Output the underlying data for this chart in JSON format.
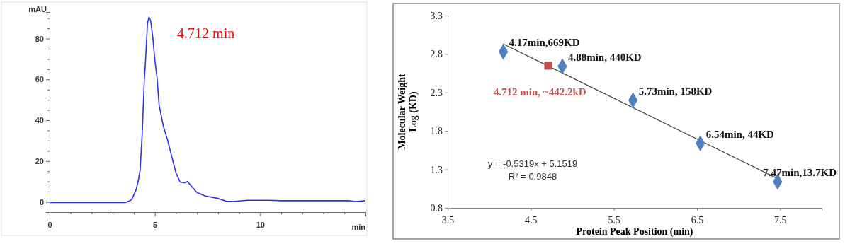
{
  "chart_data": [
    {
      "type": "line",
      "xlabel": "min",
      "ylabel": "mAU",
      "xlim": [
        0,
        15
      ],
      "ylim": [
        -5,
        93
      ],
      "xticks": [
        0,
        {
          "value": 1,
          "label": null
        },
        {
          "value": 2,
          "label": null
        },
        {
          "value": 3,
          "label": null
        },
        {
          "value": 4,
          "label": null
        },
        5,
        {
          "value": 6,
          "label": null
        },
        {
          "value": 7,
          "label": null
        },
        {
          "value": 8,
          "label": null
        },
        {
          "value": 9,
          "label": null
        },
        10,
        {
          "value": 11,
          "label": null
        },
        {
          "value": 12,
          "label": null
        },
        {
          "value": 13,
          "label": null
        },
        {
          "value": 14,
          "label": null
        },
        {
          "value": 15,
          "label": null
        }
      ],
      "yticks": [
        0,
        {
          "value": 5,
          "label": null
        },
        {
          "value": 10,
          "label": null
        },
        {
          "value": 15,
          "label": null
        },
        20,
        {
          "value": 25,
          "label": null
        },
        {
          "value": 30,
          "label": null
        },
        {
          "value": 35,
          "label": null
        },
        40,
        {
          "value": 45,
          "label": null
        },
        {
          "value": 50,
          "label": null
        },
        {
          "value": 55,
          "label": null
        },
        60,
        {
          "value": 65,
          "label": null
        },
        {
          "value": 70,
          "label": null
        },
        {
          "value": 75,
          "label": null
        },
        80,
        {
          "value": 85,
          "label": null
        },
        {
          "value": 90,
          "label": null
        }
      ],
      "grid": false,
      "marker": "none",
      "line_style": "solid",
      "annotations": [
        {
          "text": "4.712 min",
          "x": 4.712,
          "y": 90.5
        }
      ],
      "series": [
        {
          "color": "#2f2ff0",
          "x": [
            0,
            3.6,
            3.8,
            3.9,
            4.1,
            4.2,
            4.3,
            4.4,
            4.5,
            4.55,
            4.65,
            4.72,
            4.8,
            4.9,
            5.0,
            5.1,
            5.2,
            5.4,
            5.6,
            5.8,
            6.0,
            6.2,
            6.4,
            6.55,
            6.8,
            7.0,
            7.4,
            8.0,
            8.4,
            8.8,
            9.4,
            10.4,
            11,
            14.2,
            14.5,
            15
          ],
          "values": [
            -0.3,
            -0.3,
            0.5,
            1.1,
            5.7,
            9.7,
            15.5,
            33.8,
            60,
            68,
            87.6,
            90.5,
            88.8,
            80.8,
            69.3,
            61.3,
            47.5,
            37.2,
            30.4,
            22.3,
            14.3,
            9.7,
            9.4,
            10,
            6.9,
            4.6,
            2.9,
            1.7,
            0.3,
            0.3,
            0.8,
            0.8,
            0.6,
            0.6,
            0.2,
            0.6
          ]
        }
      ]
    },
    {
      "type": "scatter",
      "xlabel": "Protein Peak Position (min)",
      "ylabel": "Molecular Weight\nLog (KD)",
      "xlim": [
        3.5,
        8.0
      ],
      "ylim": [
        0.8,
        3.3
      ],
      "xticks": [
        3.5,
        4.5,
        5.5,
        6.5,
        7.5
      ],
      "yticks": [
        0.8,
        1.3,
        1.8,
        2.3,
        2.8,
        3.3
      ],
      "grid": false,
      "annotations": [
        {
          "text": "4.17min,669KD",
          "x": 4.17,
          "y": 2.83
        },
        {
          "text": "4.88min, 440KD",
          "x": 4.88,
          "y": 2.64
        },
        {
          "text": "5.73min, 158KD",
          "x": 5.73,
          "y": 2.2
        },
        {
          "text": "6.54min, 44KD",
          "x": 6.54,
          "y": 1.64
        },
        {
          "text": "7.47min,13.7KD",
          "x": 7.47,
          "y": 1.14
        },
        {
          "text": "4.712 min, ~442.2kD",
          "x": 4.712,
          "y": 2.65
        },
        "y = -0.5319x + 5.1519",
        "R² = 0.9848"
      ],
      "series": [
        {
          "type": "line",
          "color": "#404040",
          "marker": "none",
          "line_style": "solid",
          "x": [
            4.17,
            7.47
          ],
          "values": [
            2.93,
            1.18
          ]
        },
        {
          "color": "#4f81bd",
          "marker": "diamond",
          "x": [
            4.17,
            4.88,
            5.73,
            6.54,
            7.47
          ],
          "values": [
            2.83,
            2.64,
            2.2,
            1.64,
            1.14
          ]
        },
        {
          "color": "#c0504d",
          "marker": "square",
          "x": [
            4.712
          ],
          "values": [
            2.65
          ]
        }
      ]
    }
  ]
}
